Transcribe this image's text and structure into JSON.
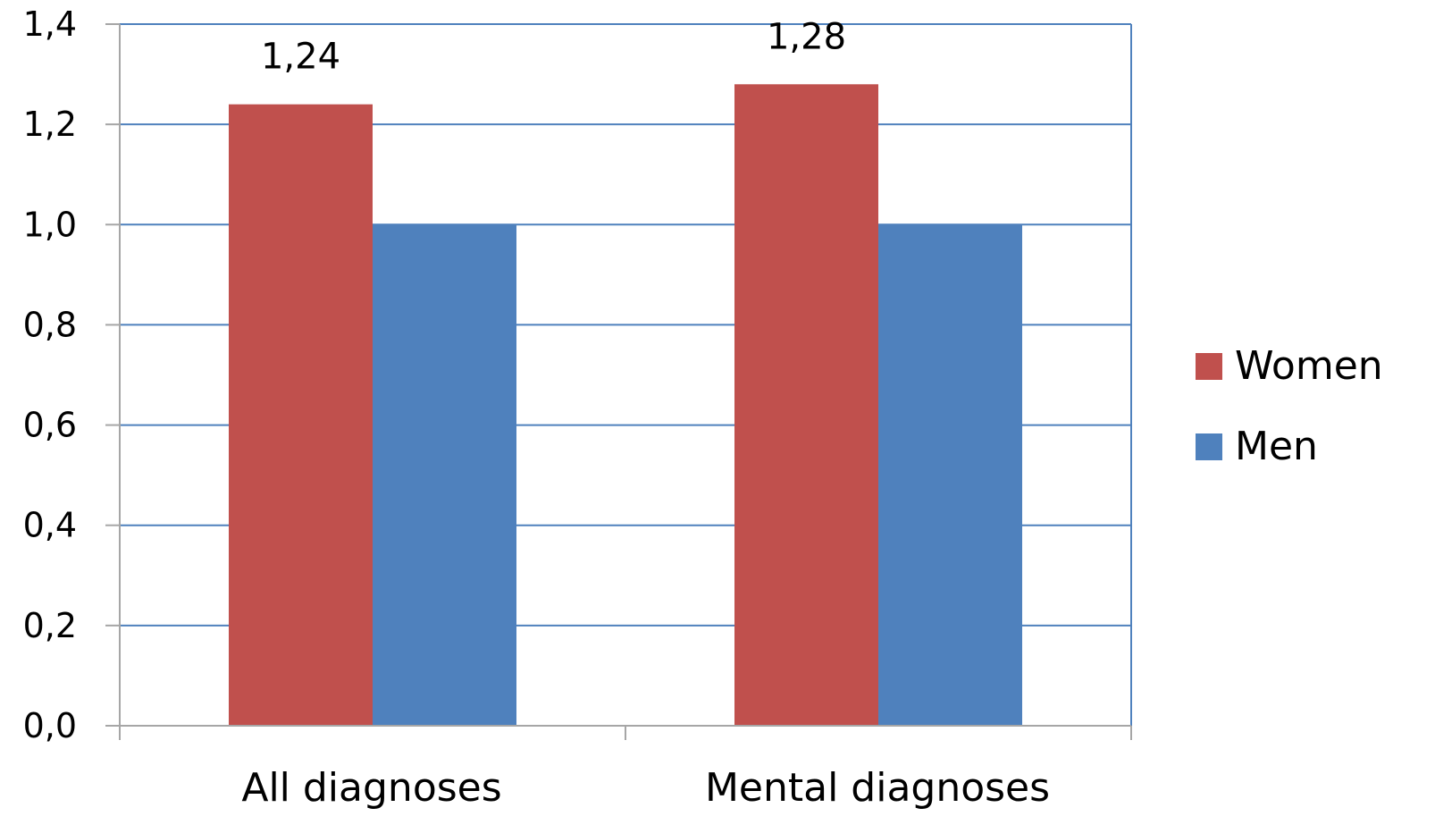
{
  "chart_data": {
    "type": "bar",
    "title": "",
    "xlabel": "",
    "ylabel": "",
    "categories": [
      "All diagnoses",
      "Mental diagnoses"
    ],
    "series": [
      {
        "name": "Women",
        "color": "#c0504d",
        "values": [
          1.24,
          1.28
        ],
        "data_labels": [
          "1,24",
          "1,28"
        ]
      },
      {
        "name": "Men",
        "color": "#4f81bd",
        "values": [
          1.0,
          1.0
        ],
        "data_labels": [
          "",
          ""
        ]
      }
    ],
    "ylim": [
      0,
      1.4
    ],
    "yticks": [
      0,
      0.2,
      0.4,
      0.6,
      0.8,
      1.0,
      1.2,
      1.4
    ],
    "ytick_labels": [
      "0,0",
      "0,2",
      "0,4",
      "0,6",
      "0,8",
      "1,0",
      "1,2",
      "1,4"
    ],
    "grid": true,
    "grid_color": "#4f81bd",
    "axis_color": "#a6a6a6",
    "legend_position": "right"
  }
}
